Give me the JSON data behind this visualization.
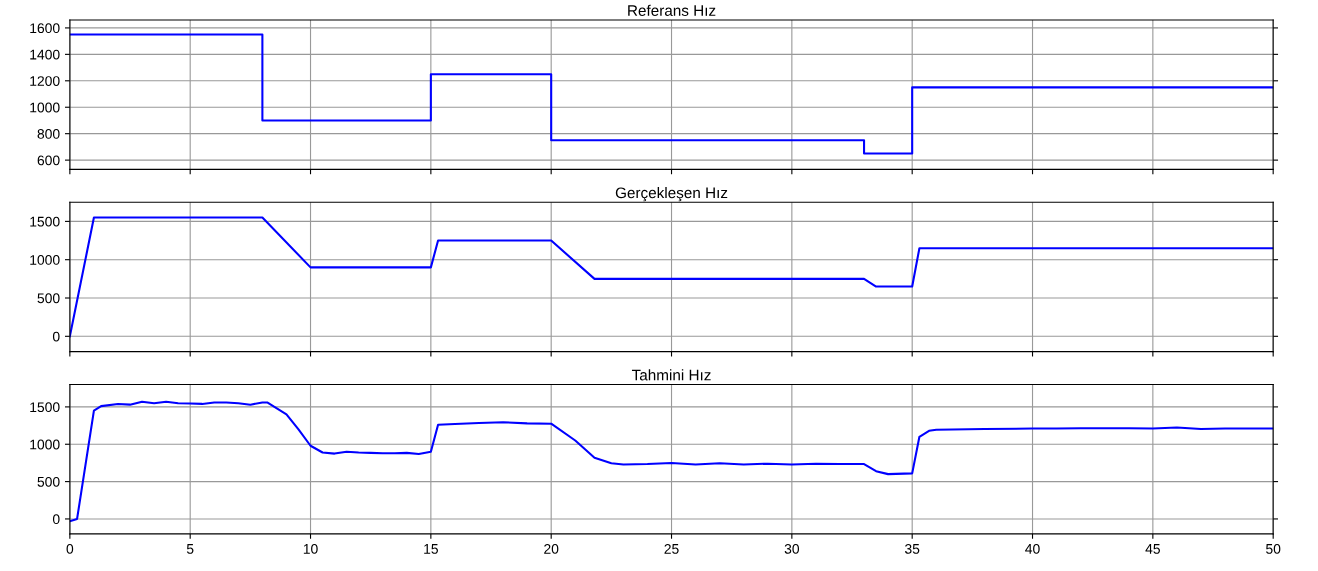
{
  "chart_data": [
    {
      "type": "line",
      "title": "Referans Hız",
      "x": [
        0,
        8,
        8,
        15,
        15,
        20,
        20,
        33,
        33,
        35,
        35,
        50
      ],
      "series": [
        {
          "color": "#0000ff",
          "values": [
            1550,
            1550,
            900,
            900,
            1250,
            1250,
            750,
            750,
            650,
            650,
            1150,
            1150
          ]
        }
      ],
      "xlim": [
        0,
        50
      ],
      "xticks": [
        0,
        5,
        10,
        15,
        20,
        25,
        30,
        35,
        40,
        45,
        50
      ],
      "ylim": [
        530,
        1660
      ],
      "yticks": [
        600,
        800,
        1000,
        1200,
        1400,
        1600
      ],
      "grid": true,
      "tick_labels": "y",
      "line_style": "solid"
    },
    {
      "type": "line",
      "title": "Gerçekleşen Hız",
      "x": [
        0,
        1,
        8,
        10,
        15,
        15.3,
        20,
        21.8,
        33,
        33.5,
        35,
        35.3,
        50
      ],
      "series": [
        {
          "color": "#0000ff",
          "values": [
            0,
            1550,
            1550,
            900,
            900,
            1250,
            1250,
            750,
            750,
            650,
            650,
            1150,
            1150
          ]
        }
      ],
      "xlim": [
        0,
        50
      ],
      "xticks": [
        0,
        5,
        10,
        15,
        20,
        25,
        30,
        35,
        40,
        45,
        50
      ],
      "ylim": [
        -200,
        1750
      ],
      "yticks": [
        0,
        500,
        1000,
        1500
      ],
      "grid": true,
      "tick_labels": "y",
      "line_style": "solid"
    },
    {
      "type": "line",
      "title": "Tahmini Hız",
      "x": [
        0,
        0.3,
        1,
        1.3,
        2,
        2.5,
        3,
        3.5,
        4,
        4.5,
        5,
        5.5,
        6,
        6.5,
        7,
        7.5,
        8,
        8.2,
        9,
        9.5,
        10,
        10.5,
        11,
        11.5,
        12,
        12.5,
        13,
        13.5,
        14,
        14.5,
        15,
        15.3,
        16,
        17,
        18,
        19,
        20,
        21,
        21.8,
        22.5,
        23,
        24,
        25,
        26,
        27,
        28,
        29,
        30,
        31,
        32,
        33,
        33.5,
        34,
        35,
        35.3,
        35.7,
        36,
        38,
        40,
        41,
        42,
        44,
        45,
        46,
        47,
        48,
        50
      ],
      "series": [
        {
          "color": "#0000ff",
          "values": [
            -30,
            0,
            1450,
            1510,
            1540,
            1530,
            1570,
            1550,
            1570,
            1550,
            1545,
            1540,
            1560,
            1560,
            1550,
            1530,
            1560,
            1560,
            1400,
            1200,
            980,
            890,
            875,
            900,
            890,
            885,
            880,
            880,
            885,
            870,
            900,
            1260,
            1270,
            1285,
            1295,
            1280,
            1275,
            1050,
            820,
            745,
            730,
            735,
            750,
            730,
            745,
            730,
            740,
            730,
            740,
            735,
            735,
            640,
            600,
            610,
            1100,
            1180,
            1195,
            1205,
            1210,
            1210,
            1215,
            1215,
            1210,
            1225,
            1205,
            1210,
            1210
          ]
        }
      ],
      "xlim": [
        0,
        50
      ],
      "xticks": [
        0,
        5,
        10,
        15,
        20,
        25,
        30,
        35,
        40,
        45,
        50
      ],
      "ylim": [
        -200,
        1800
      ],
      "yticks": [
        0,
        500,
        1000,
        1500
      ],
      "grid": true,
      "line_style": "solid"
    }
  ]
}
